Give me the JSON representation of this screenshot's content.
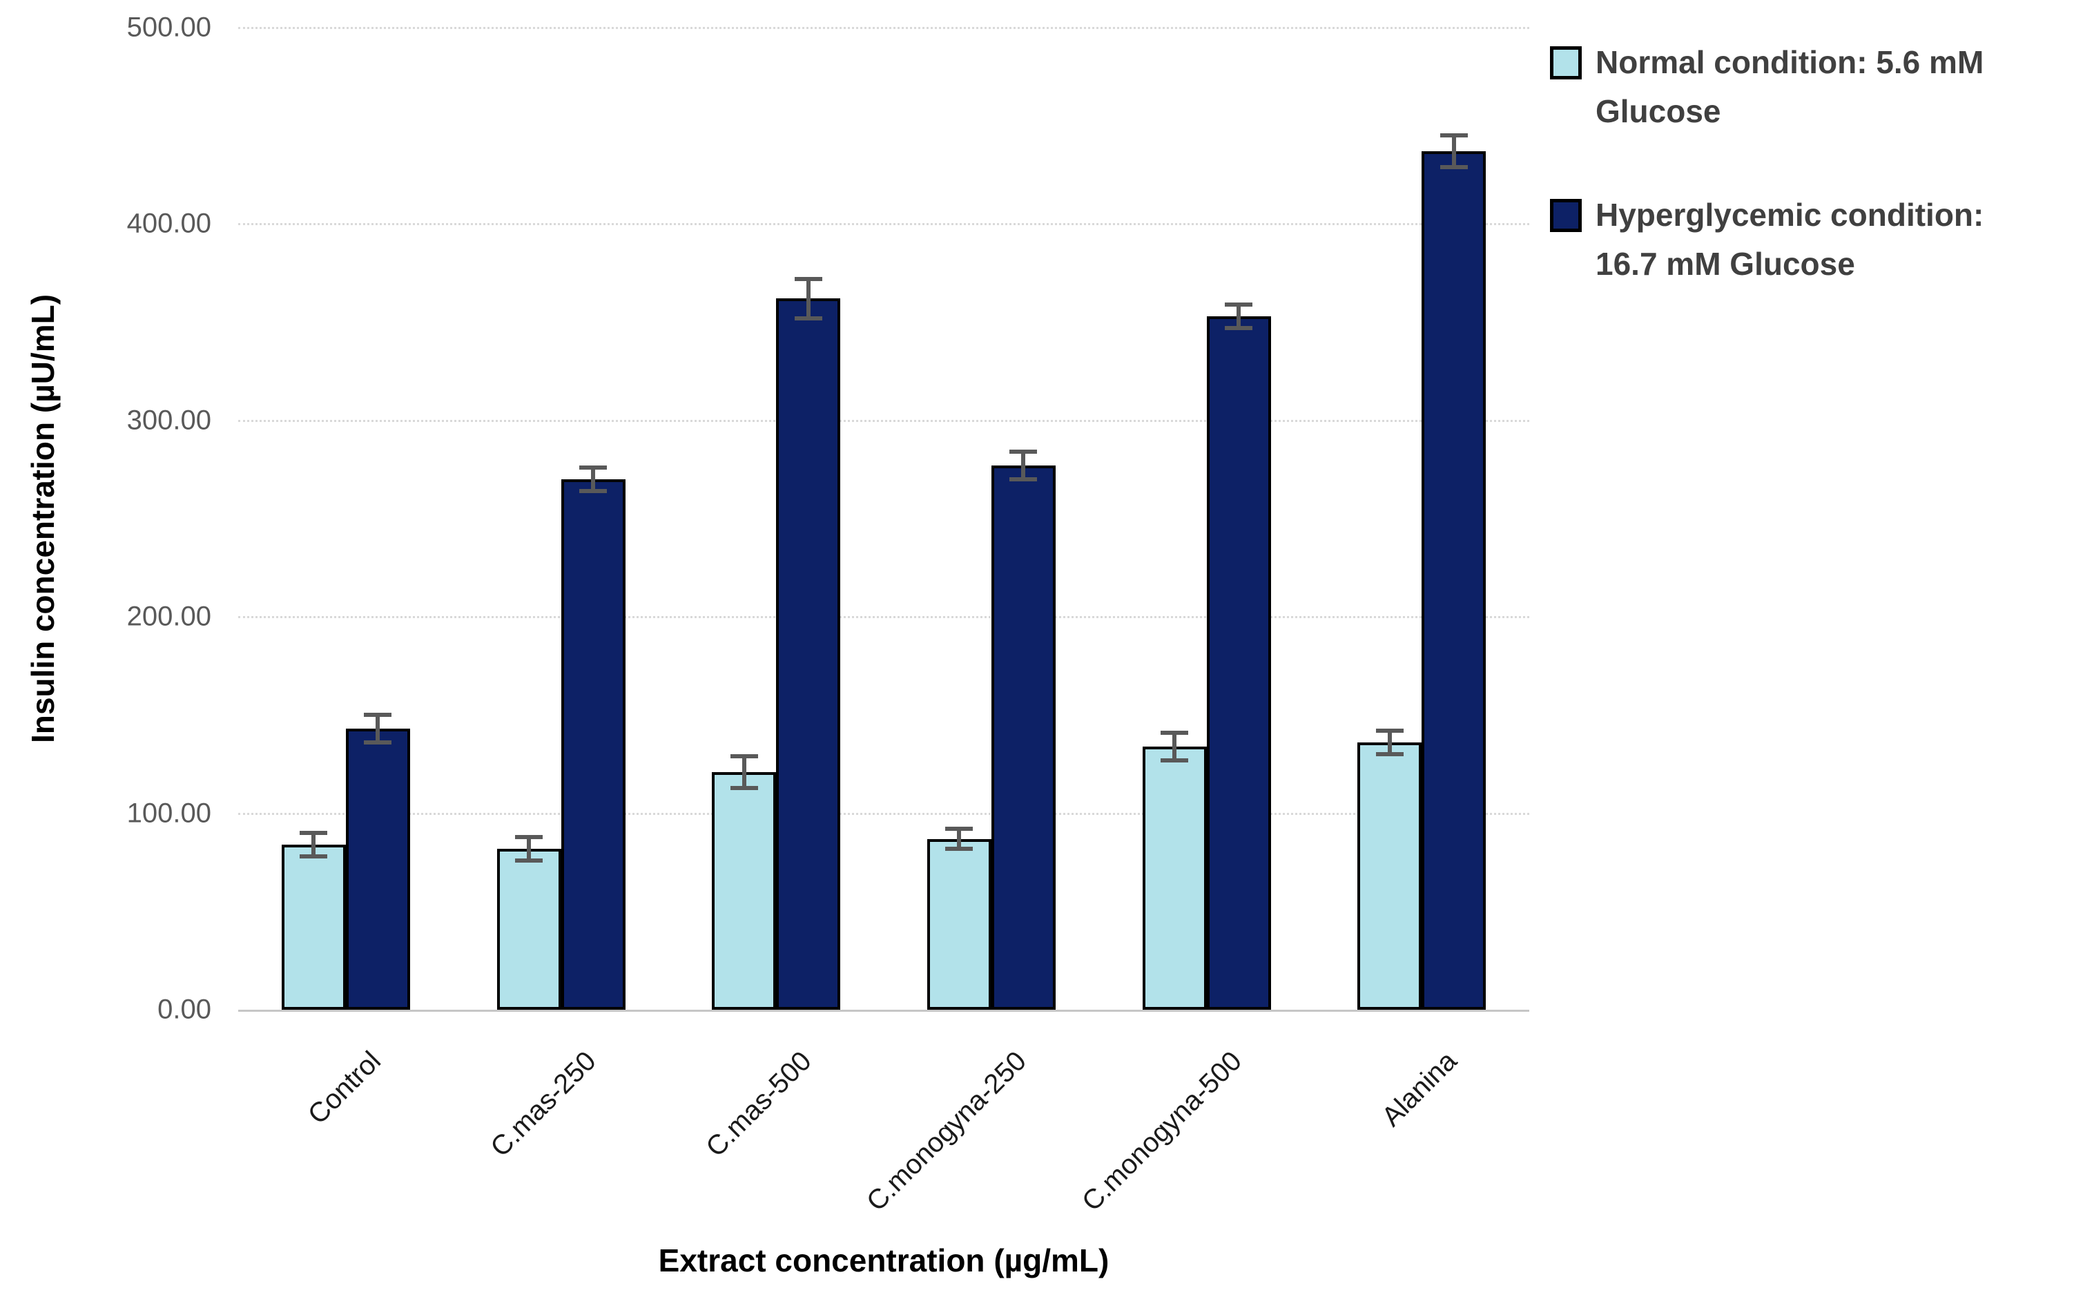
{
  "chart_data": {
    "type": "bar",
    "title": "",
    "xlabel": "Extract concentration (µg/mL)",
    "ylabel": "Insulin concentration (µU/mL)",
    "categories": [
      "Control",
      "C.mas-250",
      "C.mas-500",
      "C.monogyna-250",
      "C.monogyna-500",
      "Alanina"
    ],
    "series": [
      {
        "name": "Normal condition: 5.6 mM Glucose",
        "color": "#b2e2ea",
        "values": [
          84,
          82,
          121,
          87,
          134,
          136
        ],
        "errors": [
          5,
          5,
          7,
          4,
          6,
          5
        ]
      },
      {
        "name": "Hyperglycemic condition: 16.7 mM Glucose",
        "color": "#0d2166",
        "values": [
          143,
          270,
          362,
          277,
          353,
          437
        ],
        "errors": [
          6,
          5,
          9,
          6,
          5,
          7
        ]
      }
    ],
    "ylim": [
      0,
      500
    ],
    "ytick_step": 100,
    "ytick_labels": [
      "0.00",
      "100.00",
      "200.00",
      "300.00",
      "400.00",
      "500.00"
    ],
    "grid": true,
    "legend_position": "top-right",
    "error_bar_color": "#595959",
    "bar_border_color": "#000000"
  }
}
